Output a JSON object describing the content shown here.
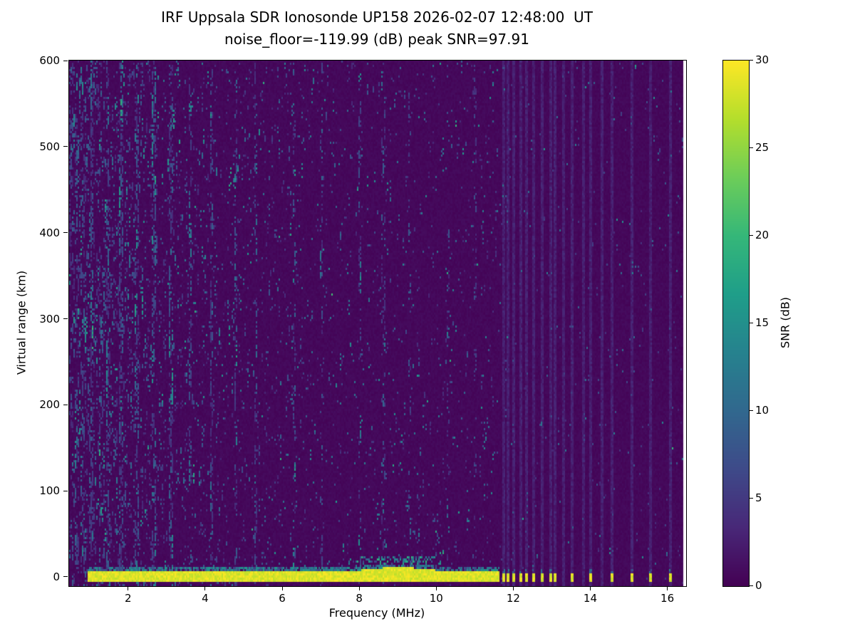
{
  "title": {
    "line1": "IRF Uppsala SDR Ionosonde UP158 2026-02-07 12:48:00  UT",
    "line2": "noise_floor=-119.99 (dB) peak SNR=97.91"
  },
  "chart_data": {
    "type": "heatmap",
    "title": "IRF Uppsala SDR Ionosonde UP158 2026-02-07 12:48:00  UT",
    "subtitle": "noise_floor=-119.99 (dB) peak SNR=97.91",
    "station": "IRF Uppsala SDR Ionosonde UP158",
    "timestamp_ut": "2026-02-07 12:48:00",
    "noise_floor_db": -119.99,
    "peak_snr_db": 97.91,
    "xlabel": "Frequency (MHz)",
    "ylabel": "Virtual range (km)",
    "xlim": [
      0.45,
      16.47
    ],
    "ylim": [
      -10,
      601
    ],
    "data_xmax": 16.4,
    "xticks": [
      2,
      4,
      6,
      8,
      10,
      12,
      14,
      16
    ],
    "yticks": [
      0,
      100,
      200,
      300,
      400,
      500,
      600
    ],
    "grid": false,
    "colorbar": {
      "label": "SNR (dB)",
      "min": 0,
      "max": 30,
      "ticks": [
        0,
        5,
        10,
        15,
        20,
        25,
        30
      ],
      "colormap": "viridis"
    },
    "features": {
      "background_snr": 0.5,
      "ground_return": {
        "freq_start": 0.93,
        "freq_end": 11.62,
        "range_bottom": -6,
        "range_top": 7,
        "snr": 30,
        "fringe_top": 13,
        "fringe_snr": 12,
        "bulge_center_mhz": 9.0,
        "bulge_top_km": 26
      },
      "ground_return_spots_mhz": [
        11.72,
        11.85,
        12.0,
        12.18,
        12.33,
        12.52,
        12.72,
        12.95,
        13.08,
        13.5,
        14.0,
        14.55,
        15.05,
        15.55,
        16.05
      ],
      "spot_width_mhz": 0.08,
      "noise_stripes_mhz": [
        1.05,
        1.45,
        1.8,
        2.2,
        2.65,
        3.1,
        3.6,
        4.15,
        4.78,
        5.3,
        6.3,
        7.0,
        8.0,
        8.6,
        9.3,
        10.3,
        11.0
      ],
      "rfi_lines_mhz": [
        11.72,
        11.85,
        12.0,
        12.18,
        12.33,
        12.52,
        12.72,
        12.95,
        13.08,
        13.3,
        13.5,
        13.8,
        14.0,
        14.3,
        14.55,
        15.05,
        15.55,
        16.05
      ],
      "speckle_base_prob": 0.035,
      "speckle_lowfreq_extra": 0.1,
      "seed": 42
    }
  }
}
